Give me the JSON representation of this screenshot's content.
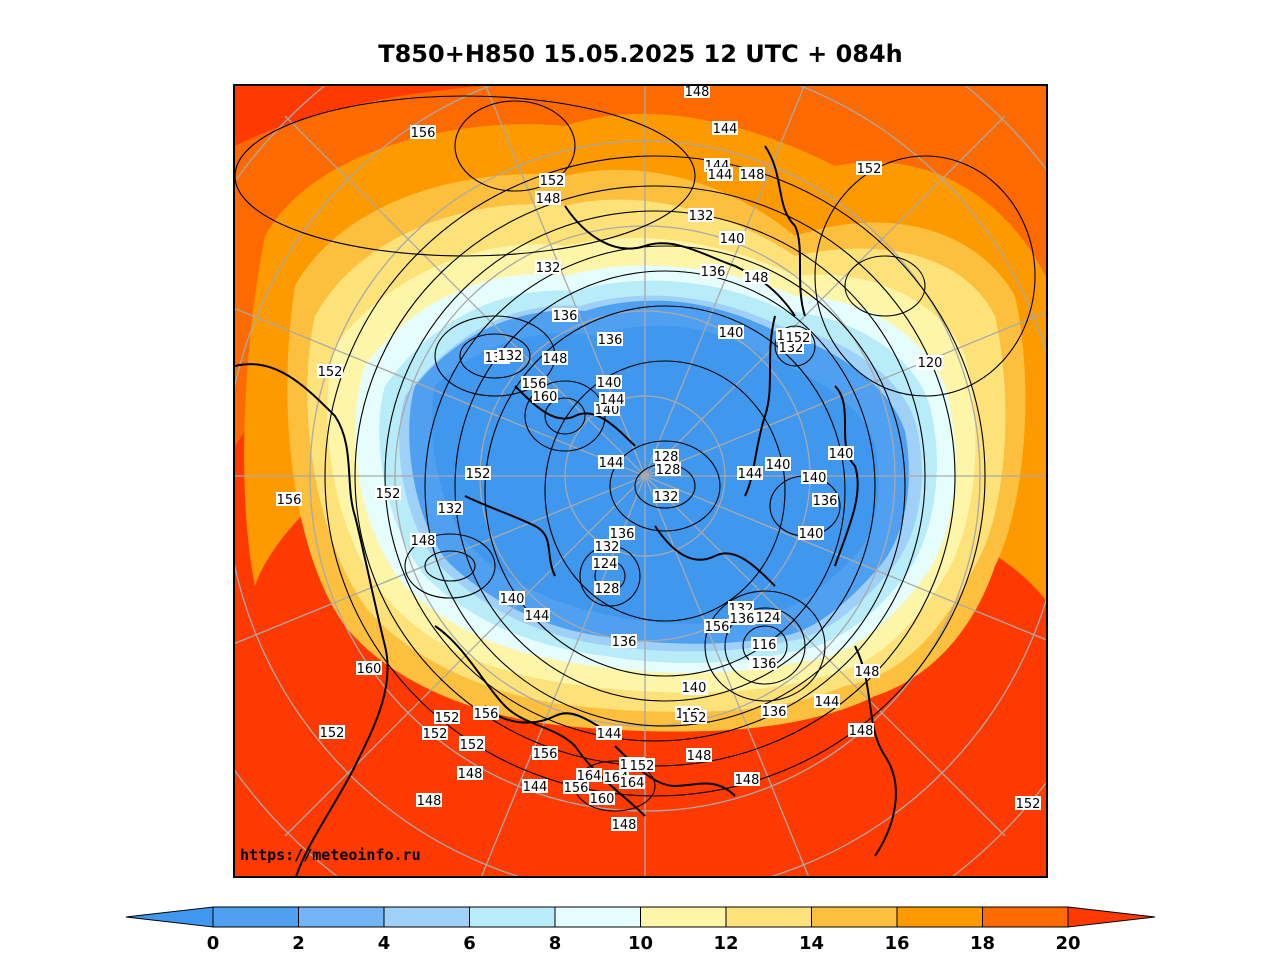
{
  "title": "T850+H850 15.05.2025 12 UTC + 084h",
  "watermark": "https://meteoinfo.ru",
  "colorbar": {
    "ticks": [
      "0",
      "2",
      "4",
      "6",
      "8",
      "10",
      "12",
      "14",
      "16",
      "18",
      "20"
    ],
    "colors": [
      "#3f97ee",
      "#4fa0f0",
      "#72b4f4",
      "#9ed0f8",
      "#b8ecf8",
      "#e6fdfd",
      "#fdf6a8",
      "#fde27a",
      "#fdbf3e",
      "#fd9a00",
      "#fd6a00",
      "#ff3a00"
    ],
    "under_color": "#3f97ee",
    "over_color": "#ff3a00"
  },
  "contour_labels": [
    "156",
    "148",
    "144",
    "144",
    "144",
    "148",
    "152",
    "148",
    "132",
    "140",
    "136",
    "148",
    "152",
    "156",
    "160",
    "132",
    "136",
    "136",
    "148",
    "140",
    "140",
    "144",
    "136",
    "132",
    "132",
    "136",
    "156",
    "160",
    "152",
    "152",
    "156",
    "132",
    "128",
    "128",
    "132",
    "144",
    "144",
    "140",
    "140",
    "140",
    "136",
    "140",
    "152",
    "148",
    "136",
    "132",
    "124",
    "128",
    "136",
    "140",
    "144",
    "132",
    "128",
    "124",
    "116",
    "120",
    "136",
    "148",
    "144",
    "140",
    "148",
    "152",
    "152",
    "152",
    "156",
    "156",
    "148",
    "144",
    "152",
    "164",
    "164",
    "160",
    "164",
    "156",
    "148",
    "144",
    "140",
    "136",
    "148",
    "152",
    "156",
    "152",
    "148",
    "148",
    "152",
    "136",
    "120",
    "160",
    "156",
    "136",
    "140",
    "148",
    "152",
    "152"
  ]
}
